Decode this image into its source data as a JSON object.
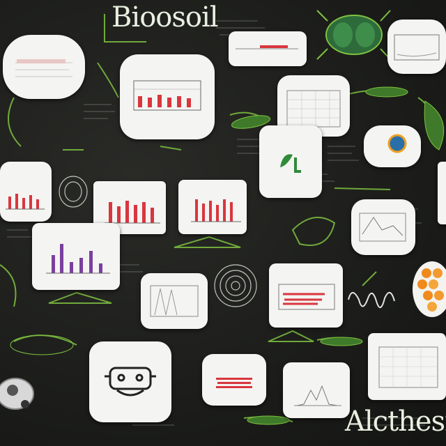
{
  "header": {
    "title": "Bioosoil"
  },
  "footer": {
    "title": "Alcthesr"
  },
  "colors": {
    "background": "#1e1f1c",
    "card": "#f4f4f2",
    "accent_green": "#7fc241",
    "bar_red": "#d9363e",
    "bar_purple": "#7b3f9e"
  },
  "icons": [
    "beetle-icon",
    "leaf-icon",
    "mushroom-icon",
    "globe-icon",
    "orange-spheres-icon",
    "bug-icon",
    "snail-shell-icon"
  ]
}
